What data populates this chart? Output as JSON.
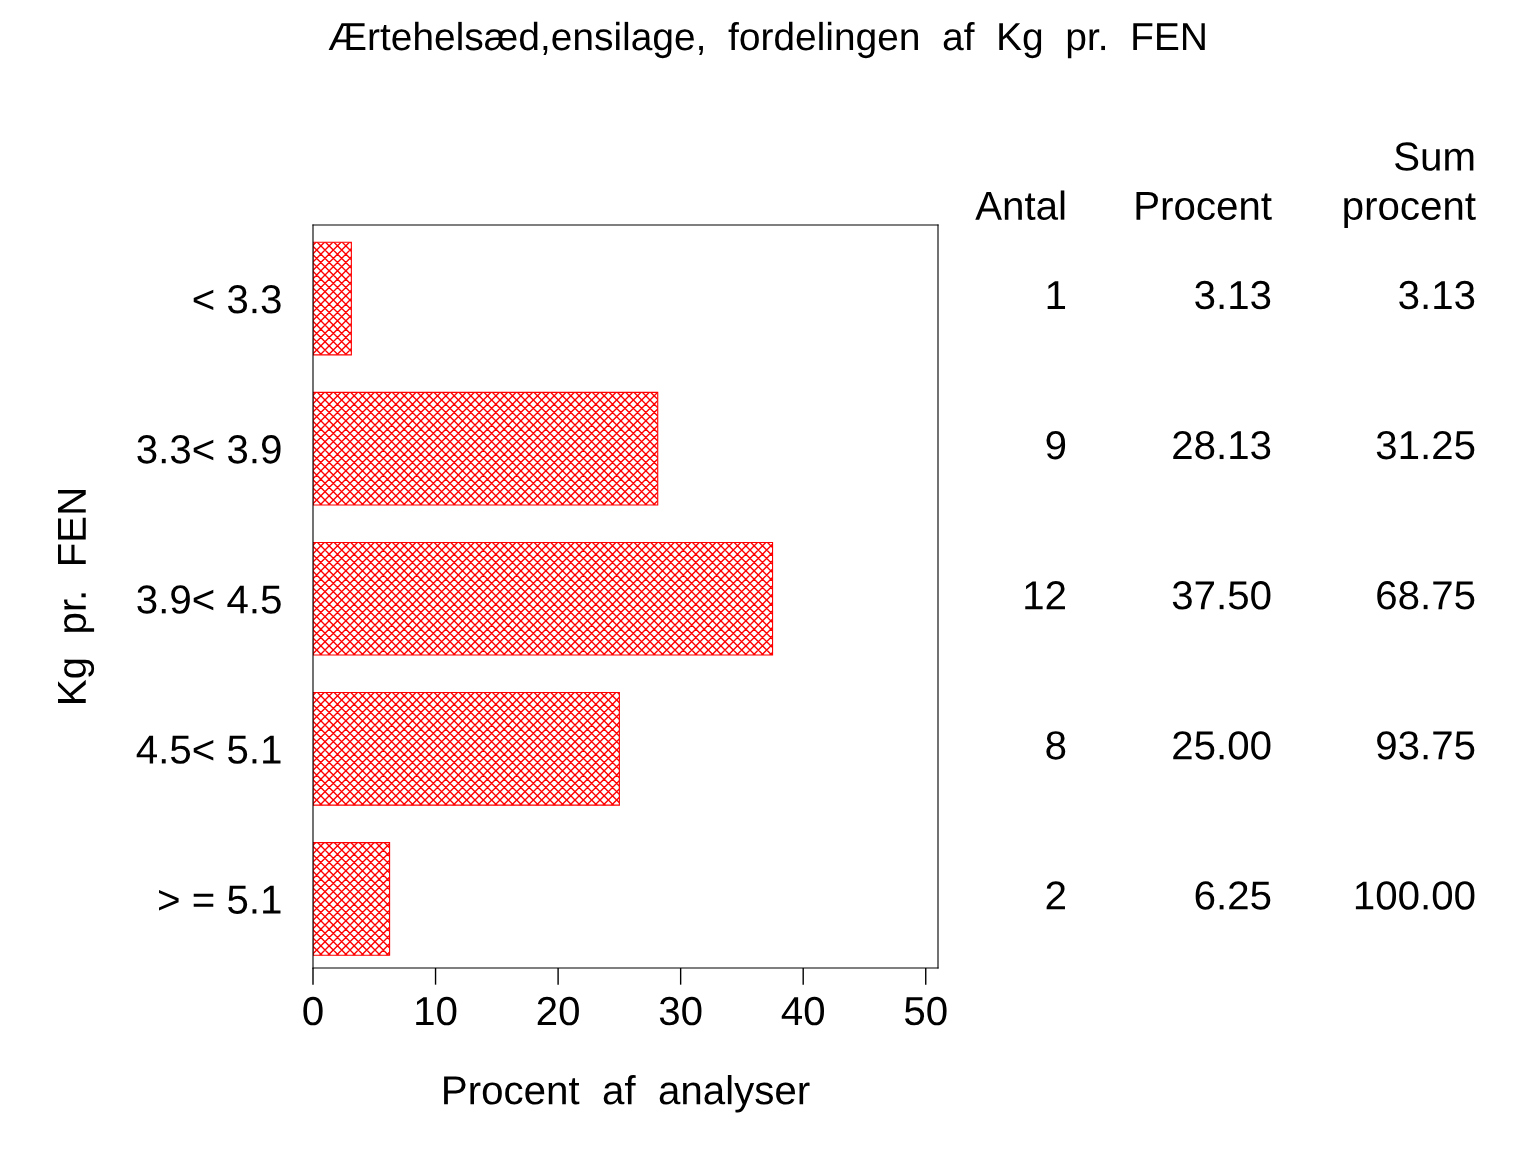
{
  "chart_data": {
    "type": "bar",
    "orientation": "horizontal",
    "title": "Ærtehelsæd,ensilage,  fordelingen  af  Kg  pr.  FEN",
    "xlabel": "Procent  af  analyser",
    "ylabel": "Kg  pr.  FEN",
    "categories": [
      "< 3.3",
      "3.3< 3.9",
      "3.9< 4.5",
      "4.5< 5.1",
      "> = 5.1"
    ],
    "values": [
      3.13,
      28.13,
      37.5,
      25.0,
      6.25
    ],
    "value_labels": [
      "3.13",
      "28.13",
      "37.50",
      "25.00",
      "6.25"
    ],
    "color": "#ff0000",
    "xlim": [
      0,
      51
    ],
    "xticks": [
      0,
      10,
      20,
      30,
      40,
      50
    ],
    "grid": false,
    "legend": false,
    "annotations": [
      "Antal",
      "Procent",
      "Sum\nprocent",
      "1",
      "3.13",
      "9",
      "31.25",
      "12",
      "68.75",
      "8",
      "93.75",
      "2",
      "100.00"
    ]
  }
}
